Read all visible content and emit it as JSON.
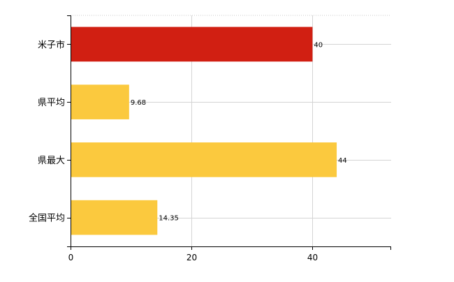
{
  "chart_data": {
    "type": "bar",
    "orientation": "horizontal",
    "categories": [
      "米子市",
      "県平均",
      "県最大",
      "全国平均"
    ],
    "values": [
      40,
      9.68,
      44,
      14.35
    ],
    "data_labels": [
      "40",
      "9.68",
      "44",
      "14.35"
    ],
    "colors": [
      "#d11f12",
      "#fbc93e",
      "#fbc93e",
      "#fbc93e"
    ],
    "xlim": [
      0,
      53
    ],
    "x_ticks": [
      0,
      20,
      40
    ],
    "x_tick_labels": [
      "0",
      "20",
      "40"
    ],
    "grid": true,
    "legend": "none"
  }
}
